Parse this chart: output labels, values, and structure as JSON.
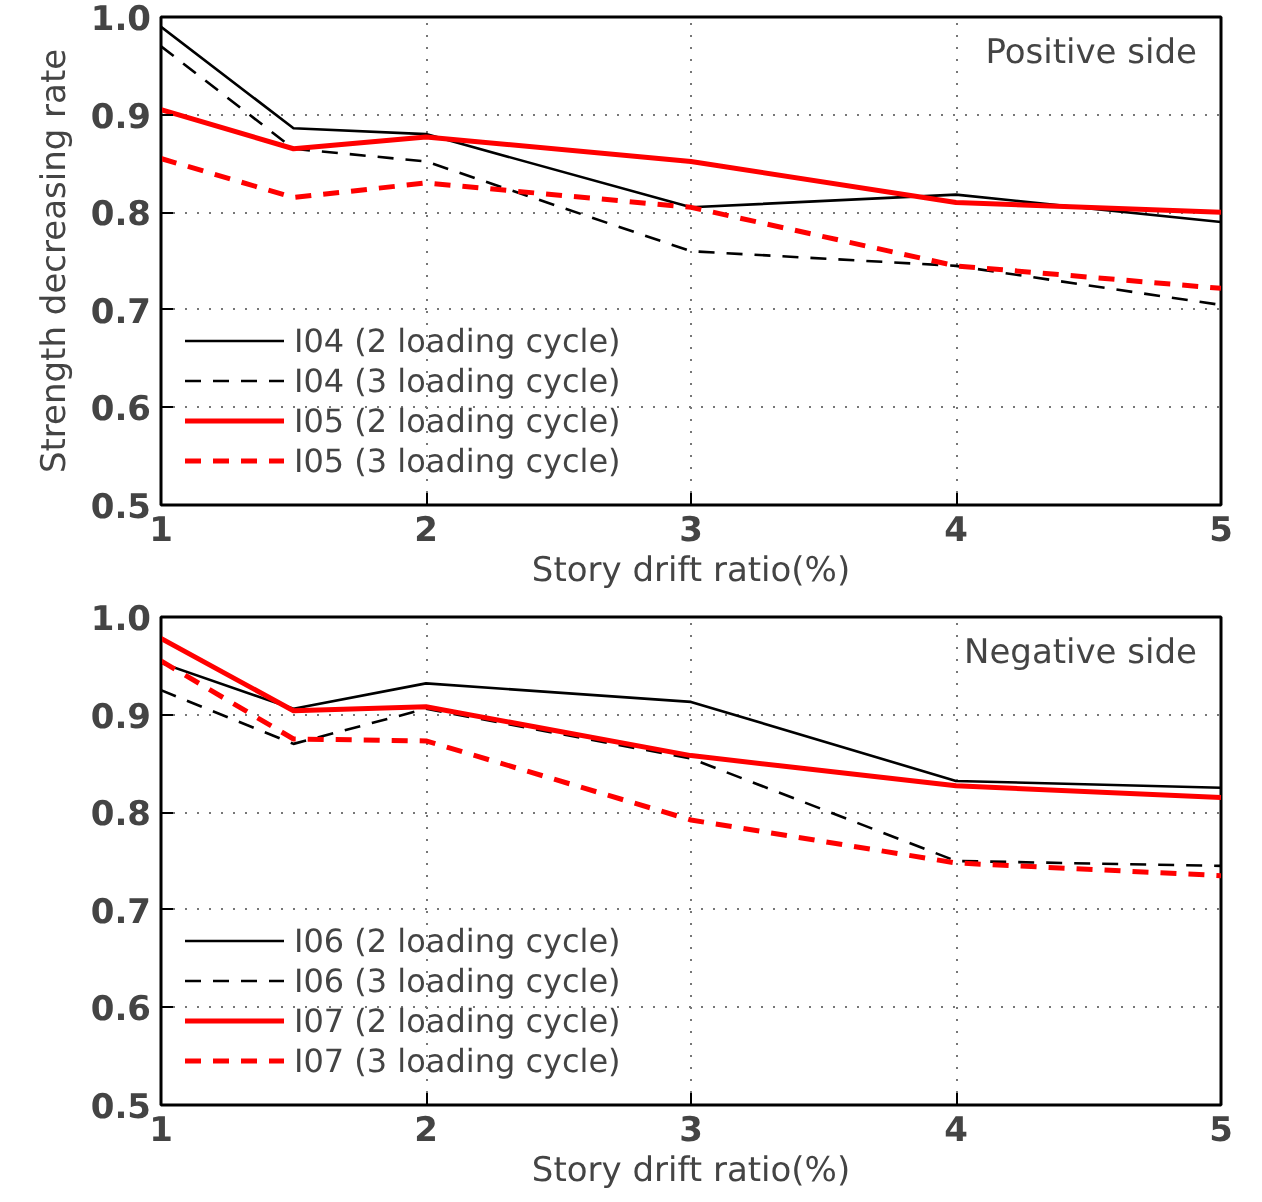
{
  "chart_data": [
    {
      "type": "line",
      "title": "Positive side",
      "xlabel": "Story drift ratio(%)",
      "ylabel": "Strength decreasing rate",
      "x": [
        1,
        1.5,
        2,
        3,
        4,
        5
      ],
      "xlim": [
        1,
        5
      ],
      "ylim": [
        0.5,
        1.0
      ],
      "xticks": [
        1,
        2,
        3,
        4,
        5
      ],
      "yticks": [
        0.5,
        0.6,
        0.7,
        0.8,
        0.9,
        {
          "value": 1.0,
          "label": "1.0"
        }
      ],
      "grid": true,
      "legend": "bottom left",
      "series": [
        {
          "name": "I04 (2 loading cycle)",
          "color": "#000000",
          "line_style": "solid",
          "values": [
            0.99,
            0.886,
            0.88,
            0.805,
            0.818,
            0.79
          ]
        },
        {
          "name": "I04 (3 loading cycle)",
          "color": "#000000",
          "line_style": "dashed",
          "values": [
            0.97,
            0.865,
            0.852,
            0.76,
            0.745,
            0.705
          ]
        },
        {
          "name": "I05 (2 loading cycle)",
          "color": "#ff0000",
          "line_style": "solid",
          "values": [
            0.905,
            0.865,
            0.877,
            0.852,
            0.81,
            0.8
          ]
        },
        {
          "name": "I05 (3 loading cycle)",
          "color": "#ff0000",
          "line_style": "dashed",
          "values": [
            0.855,
            0.815,
            0.83,
            0.805,
            0.745,
            0.722
          ]
        }
      ]
    },
    {
      "type": "line",
      "title": "Negative side",
      "xlabel": "Story drift ratio(%)",
      "x": [
        1,
        1.5,
        2,
        3,
        4,
        5
      ],
      "xlim": [
        1,
        5
      ],
      "ylim": [
        0.5,
        1.0
      ],
      "xticks": [
        1,
        2,
        3,
        4,
        5
      ],
      "yticks": [
        0.5,
        0.6,
        0.7,
        0.8,
        0.9,
        {
          "value": 1.0,
          "label": "1.0"
        }
      ],
      "grid": true,
      "legend": "bottom left",
      "series": [
        {
          "name": "I06 (2 loading cycle)",
          "color": "#000000",
          "line_style": "solid",
          "values": [
            0.953,
            0.906,
            0.932,
            0.913,
            0.832,
            0.825
          ]
        },
        {
          "name": "I06 (3 loading cycle)",
          "color": "#000000",
          "line_style": "dashed",
          "values": [
            0.925,
            0.87,
            0.906,
            0.855,
            0.75,
            0.745
          ]
        },
        {
          "name": "I07 (2 loading cycle)",
          "color": "#ff0000",
          "line_style": "solid",
          "values": [
            0.978,
            0.904,
            0.908,
            0.858,
            0.827,
            0.815
          ]
        },
        {
          "name": "I07 (3 loading cycle)",
          "color": "#ff0000",
          "line_style": "dashed",
          "values": [
            0.955,
            0.875,
            0.873,
            0.792,
            0.748,
            0.735
          ]
        }
      ]
    }
  ]
}
